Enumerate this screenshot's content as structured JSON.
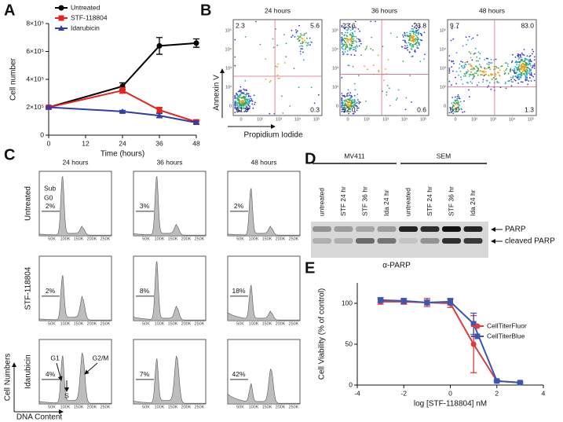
{
  "chart_data": [
    {
      "type": "line",
      "label": "A",
      "x": [
        0,
        24,
        36,
        48
      ],
      "xlim": [
        0,
        48
      ],
      "xticks": [
        0,
        12,
        24,
        36,
        48
      ],
      "ylim": [
        0,
        800000
      ],
      "yticks": [
        0,
        {
          "value": 200000,
          "label": "2×10⁵"
        },
        {
          "value": 400000,
          "label": "4×10⁵"
        },
        {
          "value": 600000,
          "label": "6×10⁵"
        },
        {
          "value": 800000,
          "label": "8×10⁵"
        }
      ],
      "xlabel": "Time (hours)",
      "ylabel": "Cell number",
      "legend": "upper left",
      "series": [
        {
          "name": "Untreated",
          "color": "#000000",
          "marker": "circle",
          "values": [
            200000,
            350000,
            640000,
            660000
          ],
          "errors": [
            10000,
            25000,
            60000,
            30000
          ]
        },
        {
          "name": "STF-118804",
          "color": "#e8231e",
          "marker": "square",
          "values": [
            200000,
            320000,
            180000,
            95000
          ],
          "errors": [
            10000,
            20000,
            20000,
            15000
          ]
        },
        {
          "name": "Idarubicin",
          "color": "#2e3fa8",
          "marker": "triangle",
          "values": [
            200000,
            170000,
            140000,
            90000
          ],
          "errors": [
            5000,
            8000,
            15000,
            10000
          ]
        }
      ]
    },
    {
      "type": "line",
      "label": "E",
      "x": [
        -3,
        -2,
        -1,
        0,
        1,
        2,
        3
      ],
      "xlim": [
        -4,
        4
      ],
      "xticks": [
        -4,
        -2,
        0,
        2,
        4
      ],
      "ylim": [
        0,
        125
      ],
      "yticks": [
        0,
        50,
        100
      ],
      "xlabel": "log [STF-118804] nM",
      "ylabel": "Cell Viability (% of control)",
      "legend": "right",
      "series": [
        {
          "name": "CellTiterFluor",
          "color": "#e03a3a",
          "marker": "circle",
          "values": [
            102,
            102,
            101,
            100,
            50,
            5,
            3
          ],
          "errors": [
            3,
            3,
            5,
            5,
            35,
            1,
            1
          ]
        },
        {
          "name": "CellTiterBlue",
          "color": "#3b55b0",
          "marker": "square",
          "values": [
            104,
            103,
            101,
            102,
            75,
            5,
            3
          ],
          "errors": [
            3,
            3,
            3,
            4,
            13,
            1,
            1
          ]
        }
      ]
    }
  ],
  "flow": {
    "label": "B",
    "titles": [
      "24 hours",
      "36 hours",
      "48 hours"
    ],
    "quadrants": [
      [
        "2.3",
        "5.6",
        "91.8",
        "0.3"
      ],
      [
        "23.6",
        "23.8",
        "52.0",
        "0.6"
      ],
      [
        "9.7",
        "83.0",
        "6.0",
        "1.3"
      ]
    ],
    "ylabel": "Annexin V",
    "xlabel": "Propidium Iodide",
    "yticks": [
      "10⁵",
      "10⁴",
      "10³",
      "10²",
      "0"
    ],
    "xticks": [
      "0",
      "10²",
      "10³",
      "10⁴",
      "10⁵"
    ]
  },
  "histograms": {
    "label": "C",
    "columns": [
      "24 hours",
      "36 hours",
      "48 hours"
    ],
    "rows": [
      "Untreated",
      "STF-118804",
      "Idarubicin"
    ],
    "subg0": [
      [
        "2%",
        "3%",
        "2%"
      ],
      [
        "2%",
        "8%",
        "18%"
      ],
      [
        "4%",
        "7%",
        "42%"
      ]
    ],
    "gate": [
      "Sub",
      "G0"
    ],
    "peaks": [
      "G1",
      "S",
      "G2/M"
    ],
    "xticks": [
      "50K",
      "100K",
      "150K",
      "200K",
      "250K"
    ],
    "ylabel": "Cell Numbers",
    "xlabel": "DNA Content"
  },
  "blot": {
    "label": "D",
    "groups": [
      "MV411",
      "SEM"
    ],
    "lanes": [
      "untreated",
      "STF 24 hr",
      "STF 36 hr",
      "Ida 24 hr",
      "untreated",
      "STF 24 hr",
      "STF 36 hr",
      "Ida 24 hr"
    ],
    "bands": [
      "PARP",
      "cleaved PARP"
    ],
    "antibody": "α-PARP"
  }
}
